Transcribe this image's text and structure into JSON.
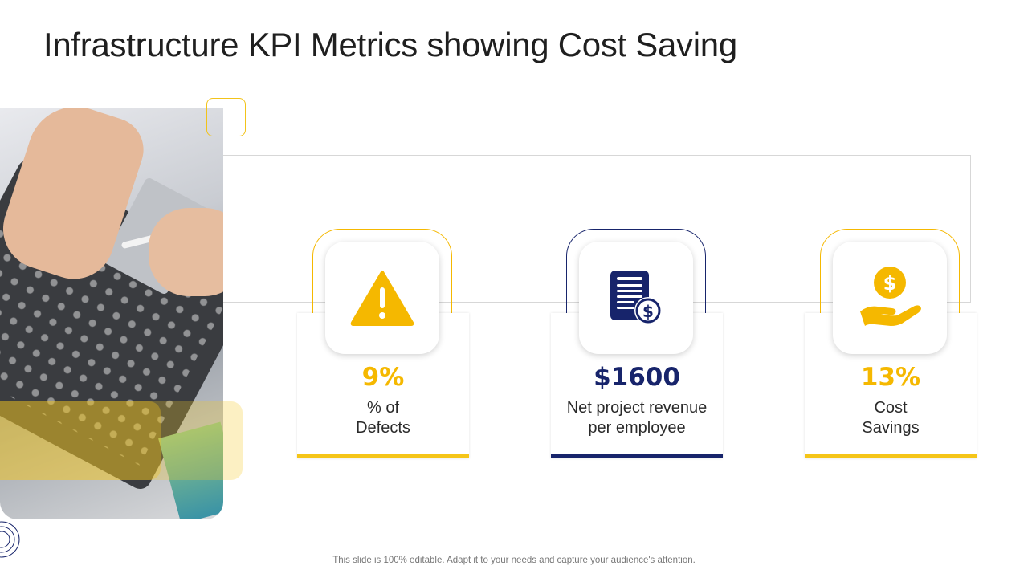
{
  "slide": {
    "title": "Infrastructure KPI Metrics showing Cost Saving",
    "footer": "This slide is 100% editable. Adapt it to your needs and capture your audience's attention."
  },
  "colors": {
    "accent_yellow": "#f5b800",
    "accent_navy": "#17246b"
  },
  "kpis": [
    {
      "value": "9%",
      "label_line1": "% of",
      "label_line2": "Defects",
      "icon": "warning-icon",
      "color": "#f5b800"
    },
    {
      "value": "$1600",
      "label_line1": "Net project revenue",
      "label_line2": "per employee",
      "icon": "invoice-dollar-icon",
      "color": "#17246b"
    },
    {
      "value": "13%",
      "label_line1": "Cost",
      "label_line2": "Savings",
      "icon": "hand-coin-icon",
      "color": "#f5b800"
    }
  ]
}
